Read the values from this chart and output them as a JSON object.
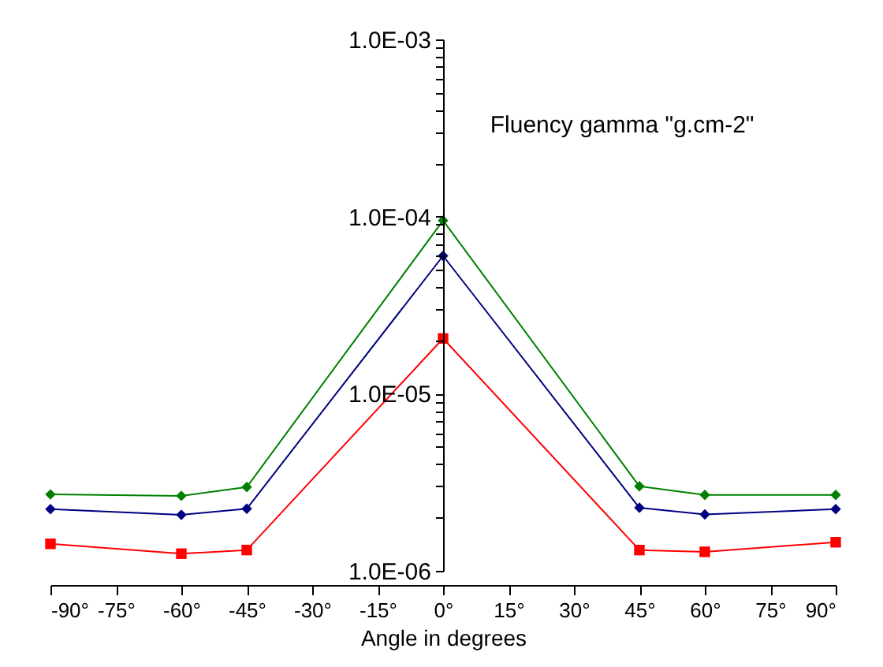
{
  "chart_data": {
    "type": "line",
    "xlabel": "Angle in degrees",
    "annotations": [
      "Fluency gamma \"g.cm-2\""
    ],
    "x": [
      -90,
      -60,
      -45,
      0,
      45,
      60,
      90
    ],
    "series": [
      {
        "color": "#008000",
        "marker": "diamond",
        "values": [
          2.7e-06,
          2.65e-06,
          2.97e-06,
          9.5e-05,
          3e-06,
          2.68e-06,
          2.68e-06
        ]
      },
      {
        "color": "#000080",
        "marker": "diamond",
        "values": [
          2.23e-06,
          2.07e-06,
          2.24e-06,
          6e-05,
          2.27e-06,
          2.08e-06,
          2.23e-06
        ]
      },
      {
        "color": "#ff0000",
        "marker": "square",
        "values": [
          1.42e-06,
          1.25e-06,
          1.31e-06,
          2.05e-05,
          1.31e-06,
          1.28e-06,
          1.45e-06
        ]
      }
    ],
    "log": "y",
    "grid": false,
    "line_style": "solid",
    "xlim": [
      -90,
      90
    ],
    "xticks": [
      {
        "value": -90,
        "label": "-90°"
      },
      {
        "value": -75,
        "label": "-75°"
      },
      {
        "value": -60,
        "label": "-60°"
      },
      {
        "value": -45,
        "label": "-45°"
      },
      {
        "value": -30,
        "label": "-30°"
      },
      {
        "value": -15,
        "label": "-15°"
      },
      {
        "value": 0,
        "label": "0°"
      },
      {
        "value": 15,
        "label": "15°"
      },
      {
        "value": 30,
        "label": "30°"
      },
      {
        "value": 45,
        "label": "45°"
      },
      {
        "value": 60,
        "label": "60°"
      },
      {
        "value": 75,
        "label": "75°"
      },
      {
        "value": 90,
        "label": "90°"
      }
    ],
    "ylim": [
      1e-06,
      0.001
    ],
    "yticks": [
      {
        "value": 1e-06,
        "label": "1.0E-06"
      },
      {
        "value": 2e-06,
        "label": null
      },
      {
        "value": 3e-06,
        "label": null
      },
      {
        "value": 4e-06,
        "label": null
      },
      {
        "value": 5e-06,
        "label": null
      },
      {
        "value": 6e-06,
        "label": null
      },
      {
        "value": 7e-06,
        "label": null
      },
      {
        "value": 8e-06,
        "label": null
      },
      {
        "value": 9e-06,
        "label": null
      },
      {
        "value": 1e-05,
        "label": "1.0E-05"
      },
      {
        "value": 2e-05,
        "label": null
      },
      {
        "value": 3e-05,
        "label": null
      },
      {
        "value": 4e-05,
        "label": null
      },
      {
        "value": 5e-05,
        "label": null
      },
      {
        "value": 6e-05,
        "label": null
      },
      {
        "value": 7e-05,
        "label": null
      },
      {
        "value": 8e-05,
        "label": null
      },
      {
        "value": 9e-05,
        "label": null
      },
      {
        "value": 0.0001,
        "label": "1.0E-04"
      },
      {
        "value": 0.0002,
        "label": null
      },
      {
        "value": 0.0003,
        "label": null
      },
      {
        "value": 0.0004,
        "label": null
      },
      {
        "value": 0.0005,
        "label": null
      },
      {
        "value": 0.0006,
        "label": null
      },
      {
        "value": 0.0007,
        "label": null
      },
      {
        "value": 0.0008,
        "label": null
      },
      {
        "value": 0.0009,
        "label": null
      },
      {
        "value": 0.001,
        "label": "1.0E-03"
      }
    ]
  }
}
